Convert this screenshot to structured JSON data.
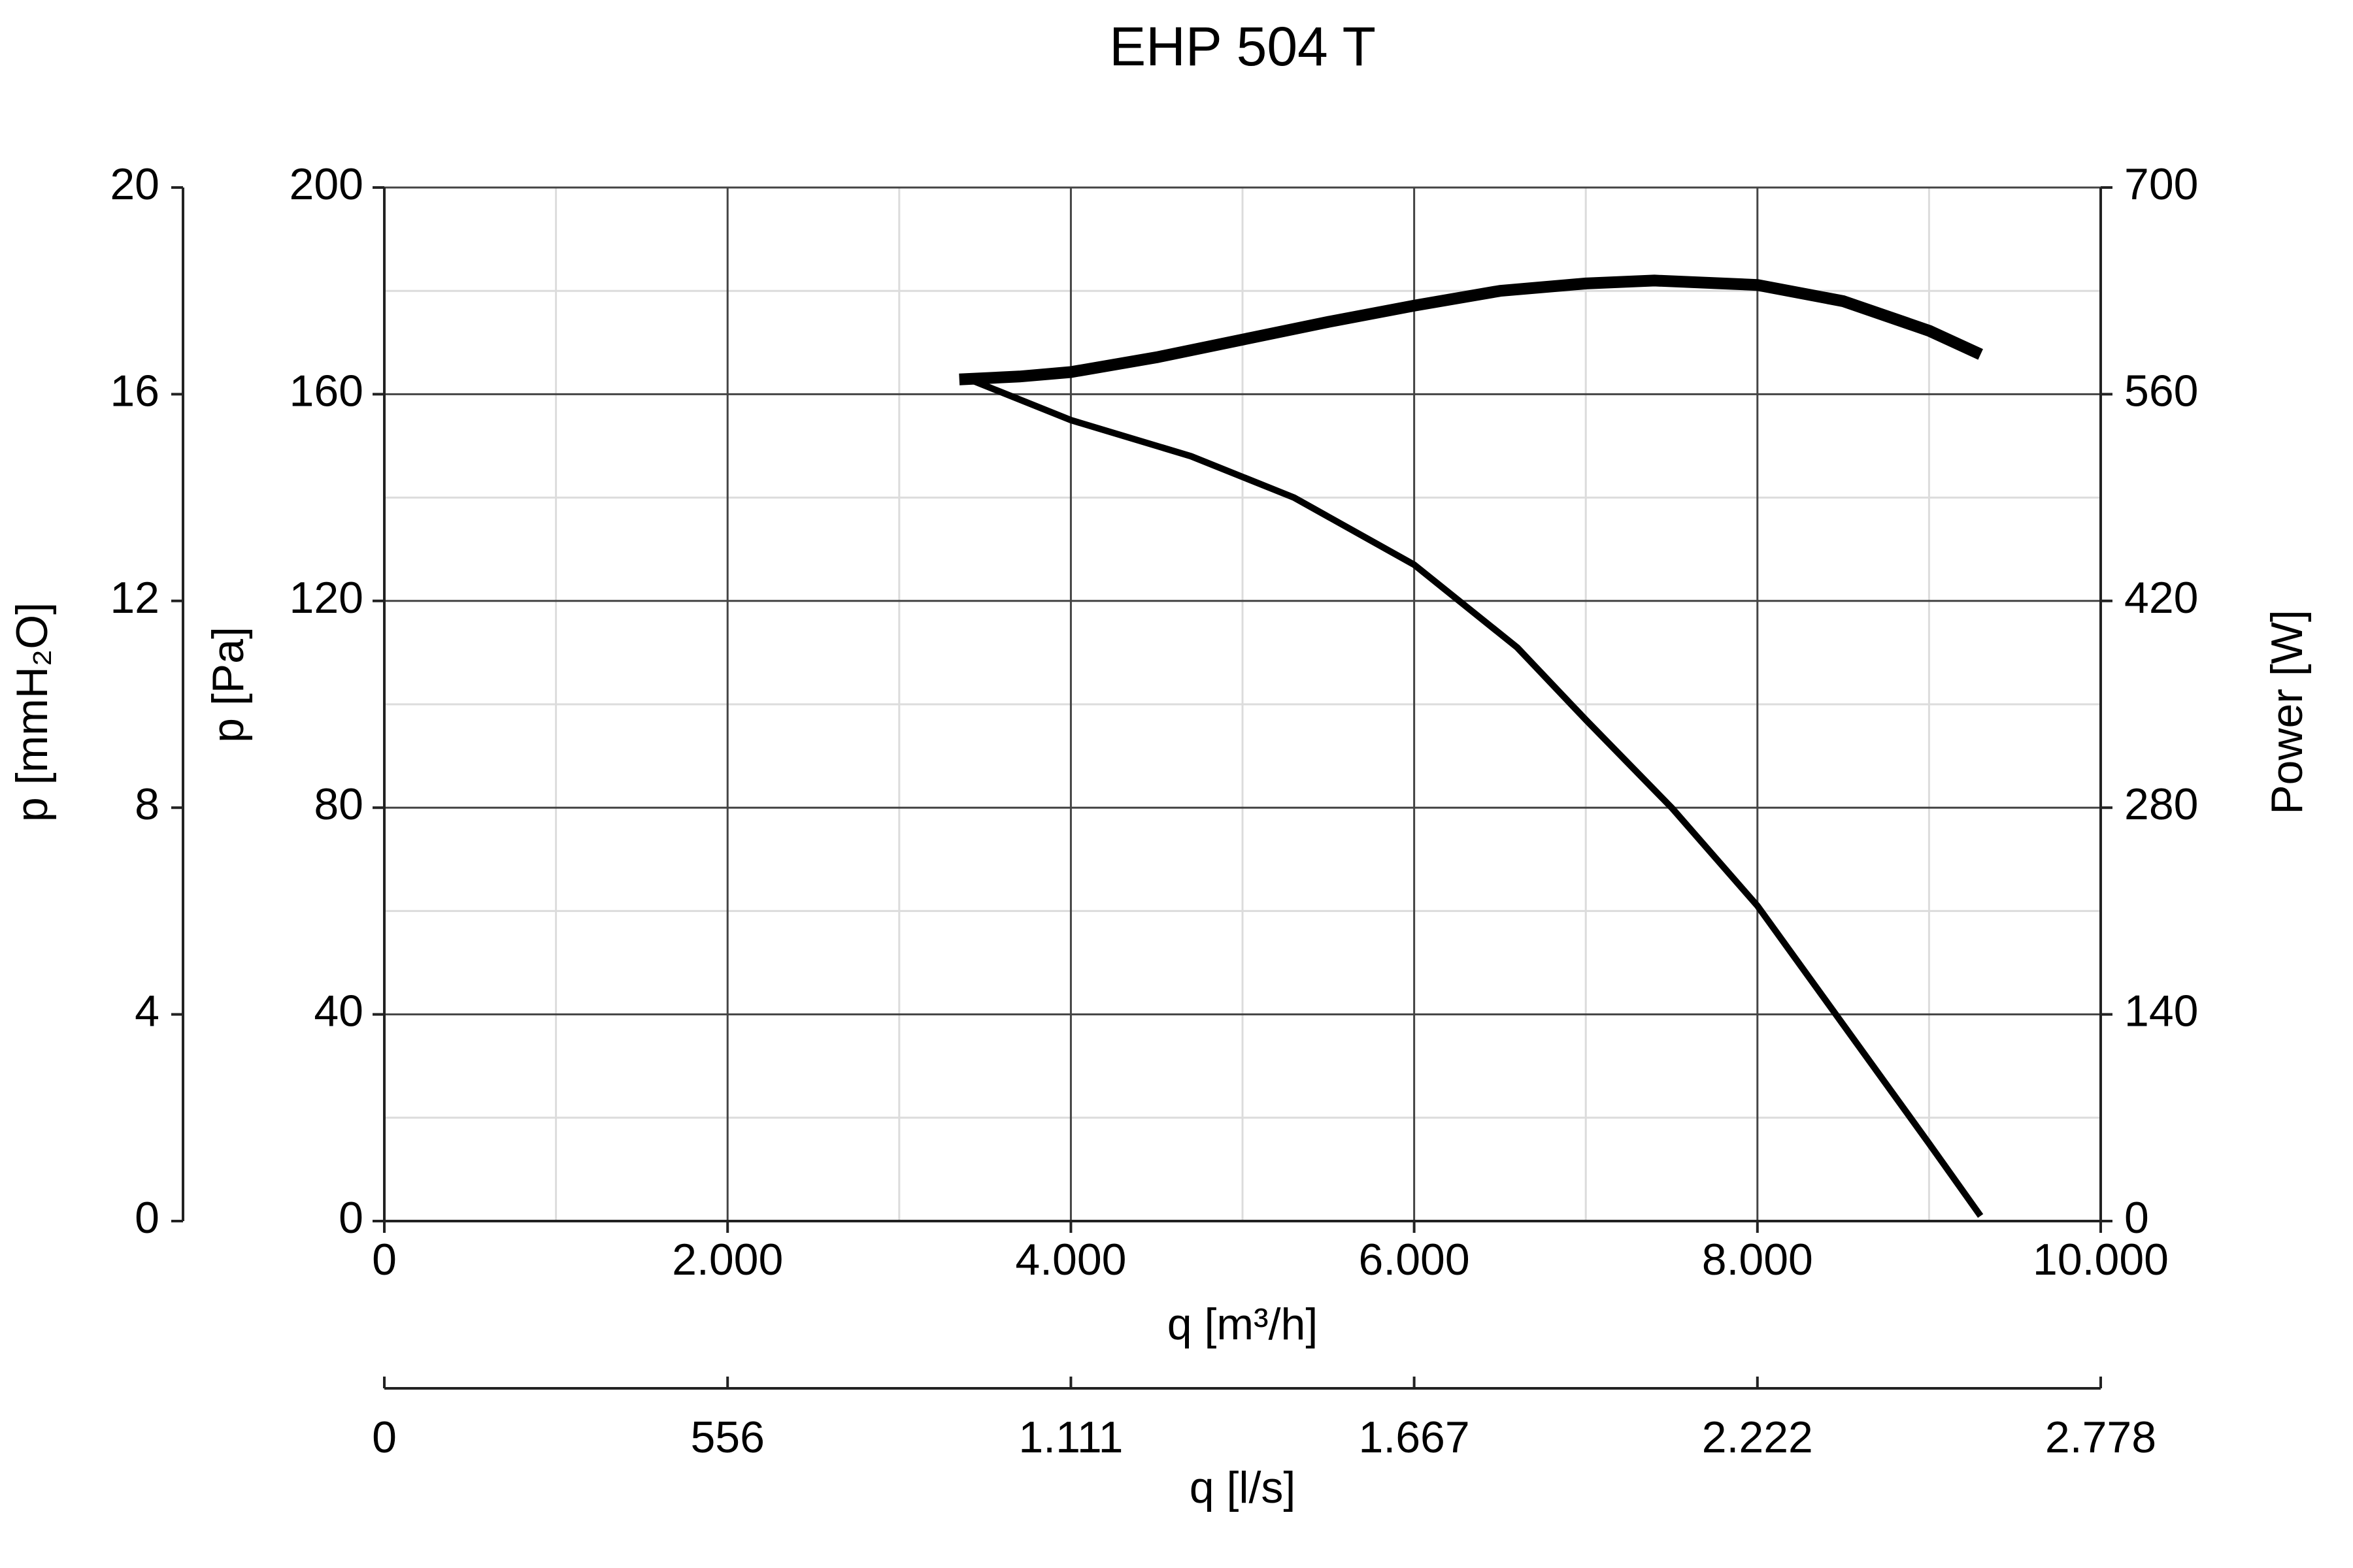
{
  "chart_data": {
    "type": "line",
    "title": "EHP 504 T",
    "x": {
      "label": "q [m³/h]",
      "range": [
        0,
        10000
      ],
      "ticks": [
        0,
        2000,
        4000,
        6000,
        8000,
        10000
      ],
      "tick_labels": [
        "0",
        "2.000",
        "4.000",
        "6.000",
        "8.000",
        "10.000"
      ]
    },
    "x2": {
      "label": "q [l/s]",
      "tick_labels": [
        "0",
        "556",
        "1.111",
        "1.667",
        "2.222",
        "2.778"
      ]
    },
    "y_left_pa": {
      "label": "p [Pa]",
      "range": [
        0,
        200
      ],
      "ticks": [
        0,
        40,
        80,
        120,
        160,
        200
      ],
      "tick_labels": [
        "0",
        "40",
        "80",
        "120",
        "160",
        "200"
      ]
    },
    "y_left_mmh2o": {
      "label": "p [mmH₂O]",
      "tick_labels": [
        "0",
        "4",
        "8",
        "12",
        "16",
        "20"
      ]
    },
    "y_right": {
      "label": "Power [W]",
      "range": [
        0,
        700
      ],
      "tick_labels": [
        "0",
        "140",
        "280",
        "420",
        "560",
        "700"
      ]
    },
    "grid": true,
    "series": [
      {
        "axis": "left",
        "points": [
          [
            3400,
            163
          ],
          [
            4000,
            155
          ],
          [
            4700,
            148
          ],
          [
            5300,
            140
          ],
          [
            6000,
            127
          ],
          [
            6600,
            111
          ],
          [
            7000,
            97
          ],
          [
            7500,
            80
          ],
          [
            8000,
            61
          ],
          [
            8500,
            38
          ],
          [
            9000,
            15
          ],
          [
            9300,
            1
          ]
        ]
      },
      {
        "axis": "right",
        "points": [
          [
            3350,
            570
          ],
          [
            3700,
            572
          ],
          [
            4000,
            575
          ],
          [
            4500,
            585
          ],
          [
            5000,
            597
          ],
          [
            5500,
            609
          ],
          [
            6000,
            620
          ],
          [
            6500,
            630
          ],
          [
            7000,
            635
          ],
          [
            7400,
            637
          ],
          [
            8000,
            634
          ],
          [
            8500,
            623
          ],
          [
            9000,
            603
          ],
          [
            9300,
            587
          ]
        ]
      }
    ]
  }
}
